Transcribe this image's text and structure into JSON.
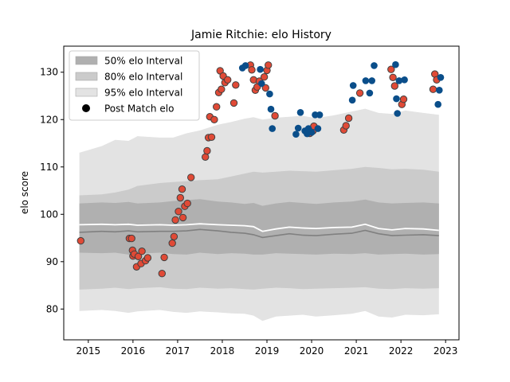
{
  "chart_data": {
    "type": "scatter",
    "title": "Jamie Ritchie: elo History",
    "xlabel": "",
    "ylabel": "elo score",
    "xlim": [
      2014.45,
      2023.3
    ],
    "ylim": [
      73.5,
      135.5
    ],
    "x_ticks": [
      2015,
      2016,
      2017,
      2018,
      2019,
      2020,
      2021,
      2022,
      2023
    ],
    "y_ticks": [
      80,
      90,
      100,
      110,
      120,
      130
    ],
    "grid": false,
    "legend_position": "top-left",
    "legend": [
      {
        "label": "50% elo Interval",
        "kind": "band50"
      },
      {
        "label": "80% elo Interval",
        "kind": "band80"
      },
      {
        "label": "95% elo Interval",
        "kind": "band95"
      },
      {
        "label": "Post Match elo",
        "kind": "marker"
      }
    ],
    "colors": {
      "band50": "#b0b0b0",
      "band80": "#cbcbcb",
      "band95": "#e3e3e3",
      "mean_line": "#808080",
      "median_line": "#ffffff",
      "win": "#e04a36",
      "win_edge": "#404040",
      "loss": "#0a4e8a"
    },
    "distribution_x": [
      2014.8,
      2015.3,
      2015.6,
      2015.9,
      2016.1,
      2016.6,
      2016.9,
      2017.2,
      2017.5,
      2017.9,
      2018.2,
      2018.5,
      2018.7,
      2018.9,
      2019.2,
      2019.5,
      2019.8,
      2020.1,
      2020.5,
      2020.9,
      2021.2,
      2021.5,
      2021.8,
      2022.1,
      2022.5,
      2022.85
    ],
    "median_line": [
      97.8,
      97.9,
      97.8,
      97.9,
      97.7,
      97.8,
      97.7,
      97.8,
      98.0,
      97.8,
      97.7,
      97.6,
      97.4,
      96.4,
      96.9,
      97.3,
      97.1,
      97.0,
      97.2,
      97.3,
      97.9,
      97.0,
      96.7,
      97.0,
      96.9,
      96.6
    ],
    "mean_line": [
      96.2,
      96.4,
      96.3,
      96.5,
      96.3,
      96.4,
      96.4,
      96.5,
      96.8,
      96.5,
      96.2,
      96.0,
      95.7,
      95.1,
      95.5,
      95.9,
      95.6,
      95.5,
      95.8,
      96.0,
      96.6,
      95.9,
      95.5,
      95.6,
      95.7,
      95.5
    ],
    "band50": {
      "lower": [
        91.9,
        91.8,
        91.9,
        91.5,
        91.7,
        91.9,
        91.6,
        91.5,
        91.9,
        91.6,
        91.8,
        91.7,
        91.5,
        91.5,
        91.8,
        91.7,
        91.6,
        91.5,
        91.7,
        91.6,
        91.8,
        91.5,
        91.6,
        91.7,
        91.5,
        91.6
      ],
      "upper": [
        102.3,
        102.5,
        102.4,
        102.6,
        102.3,
        102.5,
        102.8,
        103.0,
        103.2,
        102.7,
        102.5,
        102.2,
        102.4,
        101.8,
        102.3,
        102.6,
        102.4,
        102.2,
        102.5,
        102.7,
        103.1,
        102.5,
        102.3,
        102.4,
        102.5,
        102.3
      ]
    },
    "band80": {
      "lower": [
        84.1,
        84.3,
        84.5,
        84.2,
        84.4,
        84.6,
        84.3,
        84.2,
        84.5,
        84.3,
        84.4,
        84.2,
        84.1,
        84.3,
        84.5,
        84.4,
        84.2,
        84.3,
        84.4,
        84.5,
        84.6,
        84.3,
        84.2,
        84.4,
        84.3,
        84.4
      ],
      "upper": [
        104.0,
        104.2,
        104.6,
        105.2,
        106.0,
        106.6,
        106.8,
        107.0,
        107.2,
        107.4,
        108.0,
        108.6,
        109.0,
        108.8,
        109.0,
        109.2,
        109.1,
        109.0,
        109.3,
        109.6,
        110.0,
        109.8,
        109.5,
        109.6,
        109.4,
        109.0
      ]
    },
    "band95": {
      "lower": [
        79.6,
        79.8,
        79.6,
        79.2,
        79.5,
        79.8,
        79.4,
        79.2,
        79.5,
        79.3,
        79.1,
        79.0,
        78.6,
        77.5,
        78.4,
        78.6,
        78.8,
        78.4,
        78.7,
        79.0,
        79.6,
        78.4,
        78.2,
        78.8,
        78.7,
        78.9
      ],
      "upper": [
        113.0,
        114.4,
        115.7,
        115.5,
        116.5,
        116.2,
        116.2,
        117.1,
        117.7,
        118.9,
        119.5,
        120.2,
        120.5,
        120.0,
        120.4,
        120.6,
        120.8,
        120.3,
        120.9,
        121.7,
        122.3,
        121.4,
        121.2,
        121.9,
        121.4,
        121.0
      ]
    },
    "series": [
      {
        "name": "",
        "result": "win",
        "x": [
          2014.83,
          2015.92,
          2015.97,
          2015.99,
          2016.0,
          2016.03,
          2016.08,
          2016.12,
          2016.18,
          2016.2,
          2016.28,
          2016.33,
          2016.65,
          2016.7,
          2016.88,
          2016.92,
          2016.95,
          2017.02,
          2017.06,
          2017.1,
          2017.12,
          2017.16,
          2017.22,
          2017.3,
          2017.62,
          2017.66,
          2017.69,
          2017.72,
          2017.76,
          2017.82,
          2017.87,
          2017.92,
          2017.95,
          2017.98,
          2018.02,
          2018.06,
          2018.12,
          2018.26,
          2018.3,
          2018.63,
          2018.66,
          2018.7,
          2018.74,
          2018.78,
          2018.83,
          2018.94,
          2018.97,
          2019.0,
          2019.03,
          2019.18,
          2019.96,
          2020.03,
          2020.05,
          2020.72,
          2020.77,
          2020.83,
          2021.08,
          2021.78,
          2021.82,
          2021.86,
          2022.02,
          2022.06,
          2022.72,
          2022.76,
          2022.8
        ],
        "y": [
          94.4,
          94.9,
          94.9,
          92.4,
          91.2,
          91.6,
          88.9,
          91.1,
          89.6,
          92.2,
          90.2,
          90.8,
          87.5,
          90.9,
          93.9,
          95.3,
          98.8,
          100.6,
          103.5,
          105.3,
          99.3,
          101.7,
          102.3,
          107.8,
          112.1,
          113.4,
          116.2,
          120.6,
          116.3,
          120.0,
          122.7,
          125.7,
          130.3,
          126.4,
          129.2,
          127.8,
          128.4,
          123.5,
          127.3,
          131.5,
          130.5,
          128.4,
          126.2,
          126.9,
          128.1,
          129.0,
          126.7,
          130.4,
          131.5,
          120.8,
          117.1,
          117.6,
          118.6,
          117.8,
          118.7,
          120.3,
          125.6,
          130.6,
          128.9,
          127.1,
          123.2,
          124.3,
          126.4,
          129.6,
          128.4
        ]
      },
      {
        "name": "",
        "result": "loss",
        "x": [
          2018.45,
          2018.52,
          2018.85,
          2018.88,
          2019.06,
          2019.09,
          2019.12,
          2019.65,
          2019.7,
          2019.75,
          2019.85,
          2019.9,
          2019.93,
          2020.0,
          2020.08,
          2020.14,
          2020.18,
          2020.91,
          2020.93,
          2021.21,
          2021.3,
          2021.35,
          2021.4,
          2021.88,
          2021.9,
          2021.92,
          2021.96,
          2022.08,
          2022.83,
          2022.86,
          2022.89
        ],
        "y": [
          130.9,
          131.4,
          130.6,
          127.6,
          125.4,
          122.2,
          118.1,
          116.9,
          118.2,
          121.5,
          117.6,
          117.0,
          118.1,
          117.3,
          121.0,
          118.1,
          121.0,
          124.1,
          127.2,
          128.2,
          125.6,
          128.2,
          131.4,
          131.6,
          124.4,
          121.3,
          128.2,
          128.4,
          123.2,
          126.2,
          128.9
        ]
      }
    ]
  }
}
